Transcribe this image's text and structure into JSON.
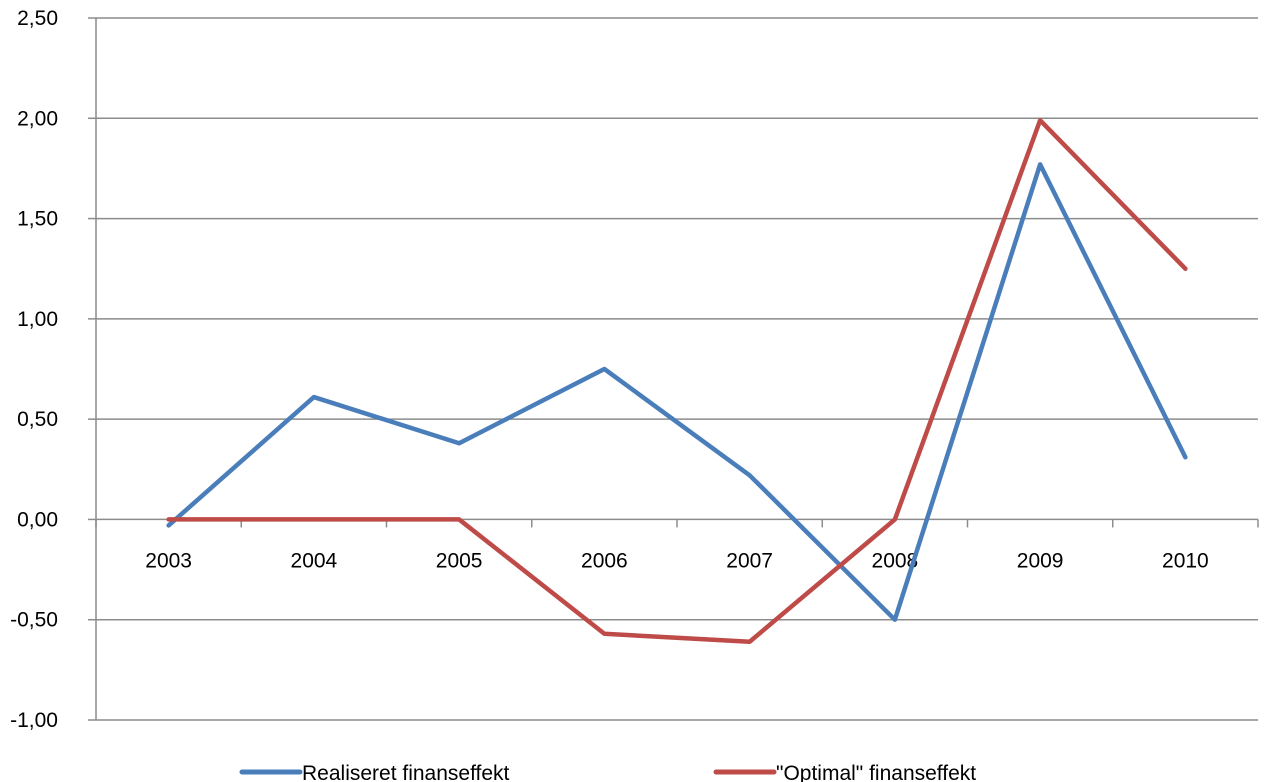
{
  "chart_data": {
    "type": "line",
    "categories": [
      "2003",
      "2004",
      "2005",
      "2006",
      "2007",
      "2008",
      "2009",
      "2010"
    ],
    "series": [
      {
        "name": "Realiseret finanseffekt",
        "color": "#4A7EBB",
        "values": [
          -0.03,
          0.61,
          0.38,
          0.75,
          0.22,
          -0.5,
          1.77,
          0.31
        ]
      },
      {
        "name": "\"Optimal\" finanseffekt",
        "color": "#BE4B48",
        "values": [
          0.0,
          0.0,
          0.0,
          -0.57,
          -0.61,
          0.0,
          1.99,
          1.25
        ]
      }
    ],
    "y_ticks": [
      "2,50",
      "2,00",
      "1,50",
      "1,00",
      "0,50",
      "0,00",
      "-0,50",
      "-1,00"
    ],
    "ylim": [
      -1.0,
      2.5
    ],
    "grid": true,
    "legend_position": "bottom",
    "gridline_color": "#8C8C8C"
  }
}
